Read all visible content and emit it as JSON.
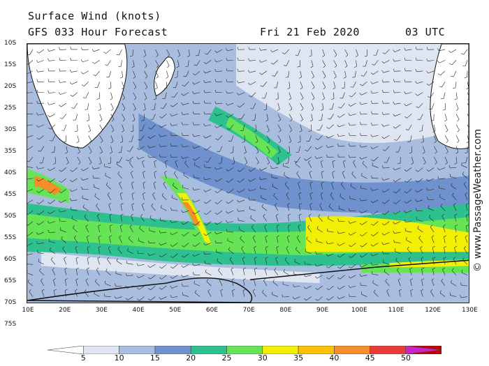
{
  "header": {
    "title": "Surface Wind (knots)",
    "forecast": "GFS 033 Hour Forecast",
    "date": "Fri 21 Feb 2020",
    "time": "03 UTC"
  },
  "credit": "© www.PassageWeather.com",
  "lat_labels": [
    "10S",
    "15S",
    "20S",
    "25S",
    "30S",
    "35S",
    "40S",
    "45S",
    "50S",
    "55S",
    "60S",
    "65S",
    "70S",
    "75S"
  ],
  "lon_labels": [
    "10E",
    "20E",
    "30E",
    "40E",
    "50E",
    "60E",
    "70E",
    "80E",
    "90E",
    "100E",
    "110E",
    "120E",
    "130E"
  ],
  "colorbar": {
    "labels": [
      "5",
      "10",
      "15",
      "20",
      "25",
      "30",
      "35",
      "40",
      "45",
      "50"
    ],
    "colors": [
      "#ffffff",
      "#dfe6f2",
      "#a9bedf",
      "#6f92cf",
      "#2fc08f",
      "#66e455",
      "#f2ef05",
      "#fdc107",
      "#f78e2a",
      "#ea3b3a",
      "#c20000",
      "#cc22cc"
    ]
  }
}
